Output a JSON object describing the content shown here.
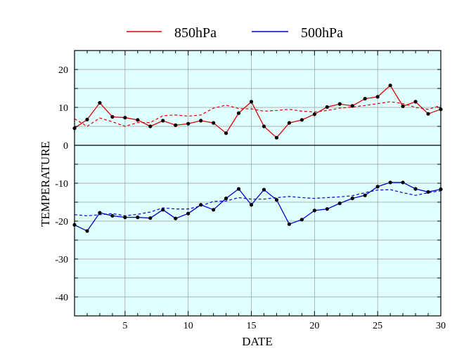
{
  "chart_data": {
    "type": "line",
    "xlabel": "DATE",
    "ylabel": "TEMPERATURE",
    "xlim": [
      1,
      30
    ],
    "ylim": [
      -45,
      25
    ],
    "x_ticks": [
      5,
      10,
      15,
      20,
      25,
      30
    ],
    "y_ticks": [
      20,
      10,
      0,
      -10,
      -20,
      -30,
      -40
    ],
    "grid": true,
    "zero_line": 0,
    "background": "#e0ffff",
    "legend_position": "top-center",
    "x": [
      1,
      2,
      3,
      4,
      5,
      6,
      7,
      8,
      9,
      10,
      11,
      12,
      13,
      14,
      15,
      16,
      17,
      18,
      19,
      20,
      21,
      22,
      23,
      24,
      25,
      26,
      27,
      28,
      29,
      30
    ],
    "series": [
      {
        "name": "850hPa",
        "color": "#dd0000",
        "values": [
          4.5,
          6.8,
          11.2,
          7.5,
          7.3,
          6.7,
          5.0,
          6.5,
          5.3,
          5.7,
          6.5,
          5.9,
          3.2,
          8.5,
          11.5,
          5.0,
          2.0,
          5.9,
          6.7,
          8.2,
          10.1,
          10.9,
          10.4,
          12.3,
          12.8,
          15.8,
          10.3,
          11.5,
          8.3,
          9.5
        ],
        "normal": [
          7.0,
          5.0,
          7.2,
          6.2,
          5.0,
          6.0,
          6.0,
          7.8,
          8.0,
          7.7,
          8.0,
          9.8,
          10.6,
          9.7,
          9.6,
          9.0,
          9.2,
          9.5,
          9.0,
          8.8,
          9.2,
          9.8,
          10.1,
          10.5,
          11.0,
          11.5,
          11.0,
          10.0,
          9.5,
          10.5
        ]
      },
      {
        "name": "500hPa",
        "color": "#0000cc",
        "values": [
          -21.0,
          -22.6,
          -17.8,
          -18.6,
          -19.0,
          -19.0,
          -19.2,
          -17.0,
          -19.3,
          -18.0,
          -15.7,
          -17.0,
          -14.0,
          -11.5,
          -15.7,
          -11.7,
          -14.4,
          -20.8,
          -19.6,
          -17.2,
          -16.8,
          -15.3,
          -14.0,
          -13.2,
          -10.9,
          -9.8,
          -9.8,
          -11.5,
          -12.3,
          -11.6
        ],
        "normal": [
          -18.3,
          -18.6,
          -18.3,
          -18.0,
          -18.6,
          -18.2,
          -17.6,
          -16.5,
          -16.8,
          -16.8,
          -16.0,
          -14.8,
          -14.7,
          -13.8,
          -14.2,
          -14.2,
          -13.8,
          -13.5,
          -13.8,
          -14.0,
          -13.8,
          -13.6,
          -13.3,
          -12.5,
          -11.8,
          -11.7,
          -12.5,
          -13.2,
          -12.5,
          -12.0
        ]
      }
    ]
  }
}
